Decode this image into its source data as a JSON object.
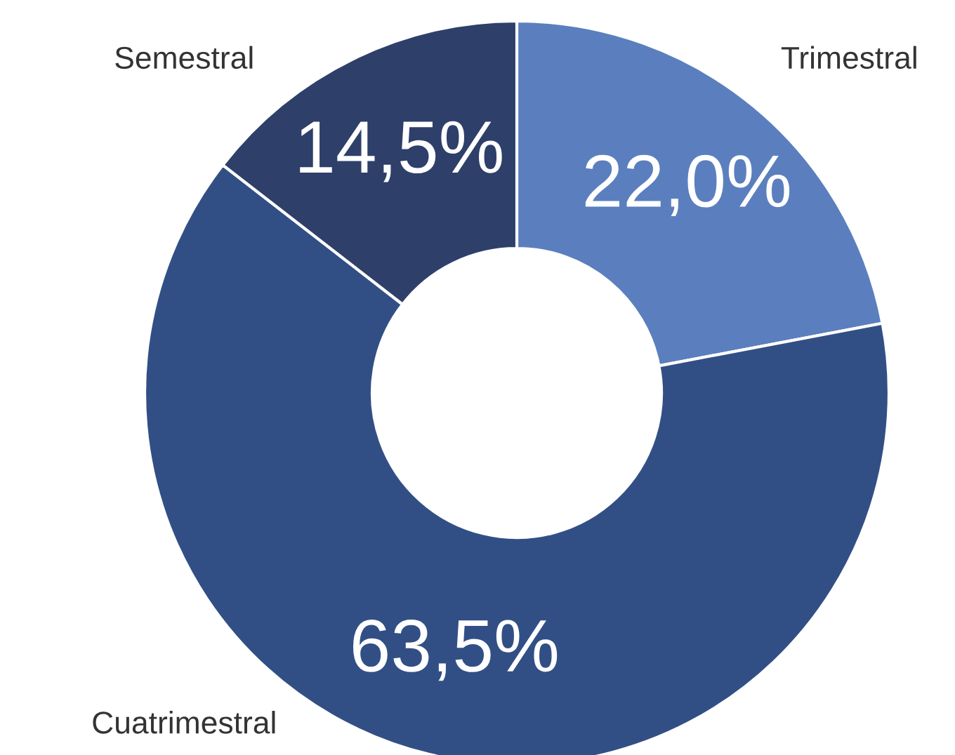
{
  "chart_data": {
    "type": "donut",
    "categories": [
      "Trimestral",
      "Cuatrimestral",
      "Semestral"
    ],
    "values": [
      22.0,
      63.5,
      14.5
    ],
    "value_labels": [
      "22,0%",
      "63,5%",
      "14,5%"
    ],
    "colors": [
      "#5b7fbe",
      "#324f85",
      "#2e3f6a"
    ],
    "legend": false
  }
}
